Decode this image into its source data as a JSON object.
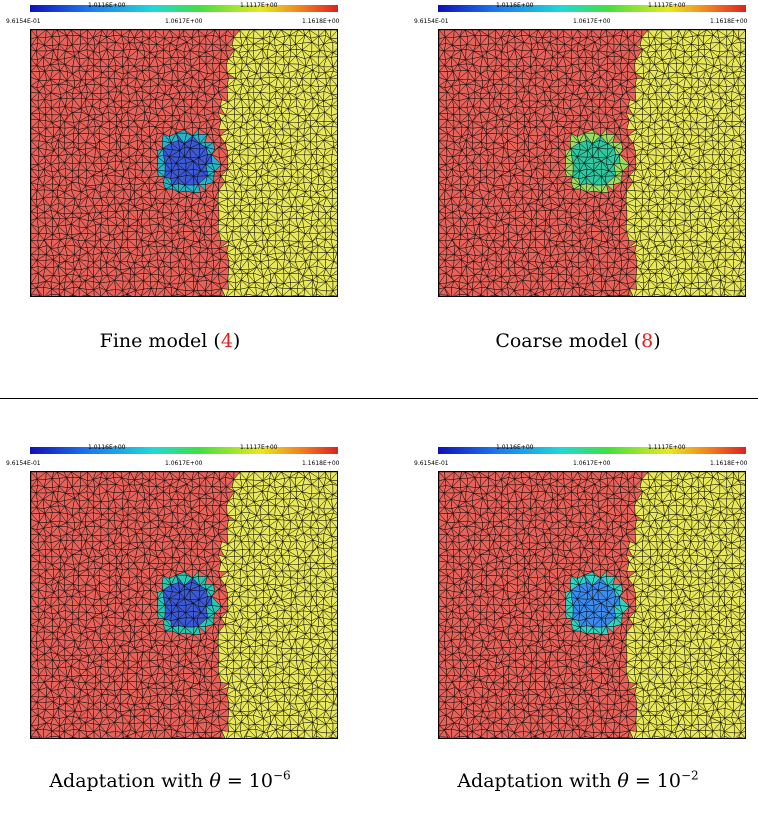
{
  "colorbar": {
    "ticks_top": [
      "1.0116E+00",
      "1.1117E+00"
    ],
    "ticks_bottom": [
      "9.6154E-01",
      "1.0617E+00",
      "1.1618E+00"
    ]
  },
  "colors": {
    "left_region": "#e8625a",
    "right_region": "#e8e85a",
    "mesh_line": "#000000",
    "ref_link": "#e02020"
  },
  "panels": [
    {
      "caption_text": "Fine model (",
      "caption_ref": "4",
      "caption_close": ")",
      "inclusion_color": "#3c5ad8",
      "inclusion_rim": "#28b4c8"
    },
    {
      "caption_text": "Coarse model (",
      "caption_ref": "8",
      "caption_close": ")",
      "inclusion_color": "#30c8a0",
      "inclusion_rim": "#a0dc60"
    },
    {
      "caption_prefix": "Adaptation with ",
      "caption_theta": "θ",
      "caption_eq": " = 10",
      "caption_exp": "−6",
      "inclusion_color": "#3c5ad8",
      "inclusion_rim": "#28c8b4"
    },
    {
      "caption_prefix": "Adaptation with ",
      "caption_theta": "θ",
      "caption_eq": " = 10",
      "caption_exp": "−2",
      "inclusion_color": "#3c8cf0",
      "inclusion_rim": "#30d4c0"
    }
  ]
}
